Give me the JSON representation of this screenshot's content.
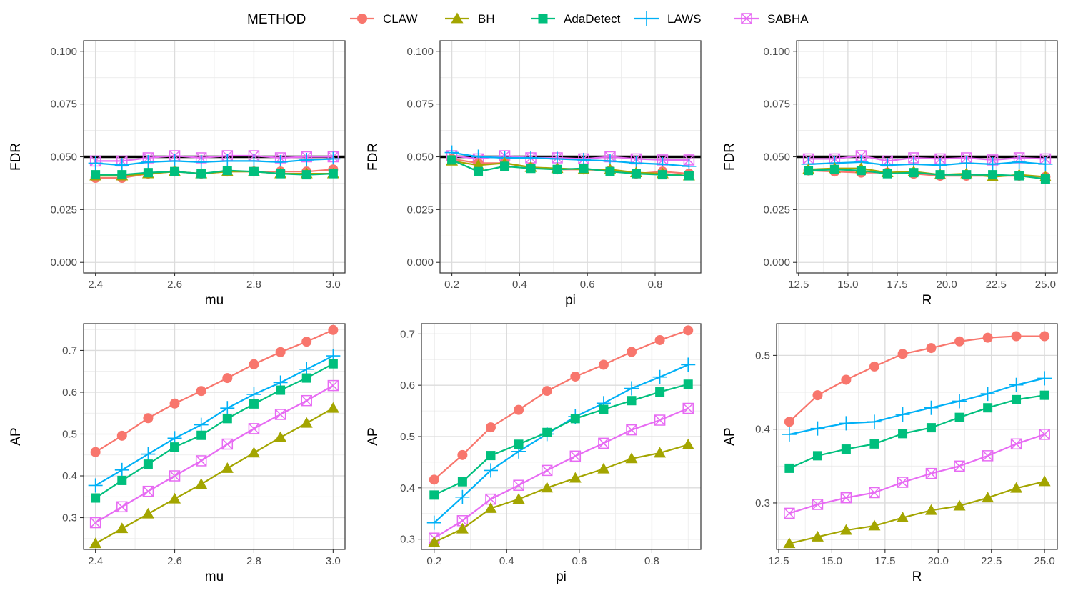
{
  "legend": {
    "title": "METHOD",
    "items": [
      {
        "name": "CLAW",
        "color": "#F8766D",
        "shape": "circle"
      },
      {
        "name": "BH",
        "color": "#A3A500",
        "shape": "triangle"
      },
      {
        "name": "AdaDetect",
        "color": "#00BF7D",
        "shape": "square"
      },
      {
        "name": "LAWS",
        "color": "#00B0F6",
        "shape": "plus"
      },
      {
        "name": "SABHA",
        "color": "#E76BF3",
        "shape": "boxcross"
      }
    ]
  },
  "chart_data": [
    {
      "type": "line",
      "xlabel": "mu",
      "ylabel": "FDR",
      "xlim": [
        2.37,
        3.03
      ],
      "ylim": [
        -0.005,
        0.105
      ],
      "xticks": [
        2.4,
        2.6,
        2.8,
        3.0
      ],
      "xtick_labels": [
        "2.4",
        "2.6",
        "2.8",
        "3.0"
      ],
      "yticks": [
        0.0,
        0.025,
        0.05,
        0.075,
        0.1
      ],
      "ytick_labels": [
        "0.000",
        "0.025",
        "0.050",
        "0.075",
        "0.100"
      ],
      "hline": 0.05,
      "x": [
        2.4,
        2.467,
        2.533,
        2.6,
        2.667,
        2.733,
        2.8,
        2.867,
        2.933,
        3.0
      ],
      "series": [
        {
          "name": "CLAW",
          "values": [
            0.04,
            0.04,
            0.042,
            0.043,
            0.042,
            0.043,
            0.043,
            0.043,
            0.043,
            0.044
          ]
        },
        {
          "name": "BH",
          "values": [
            0.041,
            0.041,
            0.042,
            0.043,
            0.042,
            0.043,
            0.043,
            0.042,
            0.042,
            0.042
          ]
        },
        {
          "name": "AdaDetect",
          "values": [
            0.0415,
            0.0415,
            0.0425,
            0.043,
            0.042,
            0.0435,
            0.043,
            0.042,
            0.0415,
            0.042
          ]
        },
        {
          "name": "LAWS",
          "values": [
            0.047,
            0.046,
            0.0475,
            0.048,
            0.0475,
            0.048,
            0.048,
            0.0475,
            0.0485,
            0.049
          ]
        },
        {
          "name": "SABHA",
          "values": [
            0.048,
            0.048,
            0.0495,
            0.0505,
            0.0495,
            0.0505,
            0.0505,
            0.0495,
            0.05,
            0.05
          ]
        }
      ]
    },
    {
      "type": "line",
      "xlabel": "pi",
      "ylabel": "FDR",
      "xlim": [
        0.165,
        0.935
      ],
      "ylim": [
        -0.005,
        0.105
      ],
      "xticks": [
        0.2,
        0.4,
        0.6,
        0.8
      ],
      "xtick_labels": [
        "0.2",
        "0.4",
        "0.6",
        "0.8"
      ],
      "yticks": [
        0.0,
        0.025,
        0.05,
        0.075,
        0.1
      ],
      "ytick_labels": [
        "0.000",
        "0.025",
        "0.050",
        "0.075",
        "0.100"
      ],
      "hline": 0.05,
      "x": [
        0.2,
        0.278,
        0.356,
        0.433,
        0.511,
        0.589,
        0.667,
        0.744,
        0.822,
        0.9
      ],
      "series": [
        {
          "name": "CLAW",
          "values": [
            0.049,
            0.047,
            0.047,
            0.045,
            0.044,
            0.044,
            0.0435,
            0.042,
            0.043,
            0.042
          ]
        },
        {
          "name": "BH",
          "values": [
            0.048,
            0.046,
            0.047,
            0.045,
            0.0445,
            0.044,
            0.044,
            0.0425,
            0.042,
            0.041
          ]
        },
        {
          "name": "AdaDetect",
          "values": [
            0.0485,
            0.043,
            0.0455,
            0.0445,
            0.044,
            0.0445,
            0.043,
            0.042,
            0.0415,
            0.041
          ]
        },
        {
          "name": "LAWS",
          "values": [
            0.052,
            0.05,
            0.0495,
            0.0495,
            0.049,
            0.0485,
            0.048,
            0.047,
            0.0465,
            0.0455
          ]
        },
        {
          "name": "SABHA",
          "values": [
            0.0505,
            0.049,
            0.0505,
            0.0495,
            0.0495,
            0.049,
            0.05,
            0.049,
            0.0485,
            0.0485
          ]
        }
      ]
    },
    {
      "type": "line",
      "xlabel": "R",
      "ylabel": "FDR",
      "xlim": [
        12.4,
        25.6
      ],
      "ylim": [
        -0.005,
        0.105
      ],
      "xticks": [
        12.5,
        15.0,
        17.5,
        20.0,
        22.5,
        25.0
      ],
      "xtick_labels": [
        "12.5",
        "15.0",
        "17.5",
        "20.0",
        "22.5",
        "25.0"
      ],
      "yticks": [
        0.0,
        0.025,
        0.05,
        0.075,
        0.1
      ],
      "ytick_labels": [
        "0.000",
        "0.025",
        "0.050",
        "0.075",
        "0.100"
      ],
      "hline": 0.05,
      "x": [
        13,
        14.33,
        15.67,
        17,
        18.33,
        19.67,
        21,
        22.33,
        23.67,
        25
      ],
      "series": [
        {
          "name": "CLAW",
          "values": [
            0.0435,
            0.043,
            0.0425,
            0.0425,
            0.042,
            0.041,
            0.041,
            0.041,
            0.041,
            0.0405
          ]
        },
        {
          "name": "BH",
          "values": [
            0.044,
            0.0445,
            0.0445,
            0.0425,
            0.043,
            0.0415,
            0.042,
            0.0405,
            0.0415,
            0.0405
          ]
        },
        {
          "name": "AdaDetect",
          "values": [
            0.0435,
            0.044,
            0.0435,
            0.042,
            0.0425,
            0.0415,
            0.0415,
            0.0415,
            0.041,
            0.0395
          ]
        },
        {
          "name": "LAWS",
          "values": [
            0.0465,
            0.047,
            0.0475,
            0.046,
            0.0465,
            0.046,
            0.047,
            0.0465,
            0.0475,
            0.0465
          ]
        },
        {
          "name": "SABHA",
          "values": [
            0.049,
            0.049,
            0.0505,
            0.048,
            0.0495,
            0.049,
            0.0495,
            0.0485,
            0.0495,
            0.049
          ]
        }
      ]
    },
    {
      "type": "line",
      "xlabel": "mu",
      "ylabel": "AP",
      "xlim": [
        2.37,
        3.03
      ],
      "ylim": [
        0.224,
        0.764
      ],
      "xticks": [
        2.4,
        2.6,
        2.8,
        3.0
      ],
      "xtick_labels": [
        "2.4",
        "2.6",
        "2.8",
        "3.0"
      ],
      "yticks": [
        0.3,
        0.4,
        0.5,
        0.6,
        0.7
      ],
      "ytick_labels": [
        "0.3",
        "0.4",
        "0.5",
        "0.6",
        "0.7"
      ],
      "x": [
        2.4,
        2.467,
        2.533,
        2.6,
        2.667,
        2.733,
        2.8,
        2.867,
        2.933,
        3.0
      ],
      "series": [
        {
          "name": "CLAW",
          "values": [
            0.457,
            0.496,
            0.538,
            0.573,
            0.603,
            0.634,
            0.667,
            0.696,
            0.721,
            0.749
          ]
        },
        {
          "name": "BH",
          "values": [
            0.238,
            0.274,
            0.309,
            0.345,
            0.38,
            0.418,
            0.455,
            0.492,
            0.526,
            0.562
          ]
        },
        {
          "name": "AdaDetect",
          "values": [
            0.347,
            0.389,
            0.428,
            0.469,
            0.497,
            0.537,
            0.572,
            0.605,
            0.634,
            0.668
          ]
        },
        {
          "name": "LAWS",
          "values": [
            0.377,
            0.414,
            0.452,
            0.49,
            0.522,
            0.562,
            0.595,
            0.623,
            0.655,
            0.687
          ]
        },
        {
          "name": "SABHA",
          "values": [
            0.288,
            0.326,
            0.363,
            0.4,
            0.436,
            0.476,
            0.513,
            0.547,
            0.58,
            0.616
          ]
        }
      ]
    },
    {
      "type": "line",
      "xlabel": "pi",
      "ylabel": "AP",
      "xlim": [
        0.165,
        0.935
      ],
      "ylim": [
        0.28,
        0.72
      ],
      "xticks": [
        0.2,
        0.4,
        0.6,
        0.8
      ],
      "xtick_labels": [
        "0.2",
        "0.4",
        "0.6",
        "0.8"
      ],
      "yticks": [
        0.3,
        0.4,
        0.5,
        0.6,
        0.7
      ],
      "ytick_labels": [
        "0.3",
        "0.4",
        "0.5",
        "0.6",
        "0.7"
      ],
      "x": [
        0.2,
        0.278,
        0.356,
        0.433,
        0.511,
        0.589,
        0.667,
        0.744,
        0.822,
        0.9
      ],
      "series": [
        {
          "name": "CLAW",
          "values": [
            0.416,
            0.464,
            0.518,
            0.552,
            0.589,
            0.617,
            0.64,
            0.665,
            0.688,
            0.707
          ]
        },
        {
          "name": "BH",
          "values": [
            0.294,
            0.32,
            0.36,
            0.378,
            0.4,
            0.419,
            0.437,
            0.457,
            0.468,
            0.484
          ]
        },
        {
          "name": "AdaDetect",
          "values": [
            0.386,
            0.412,
            0.463,
            0.485,
            0.508,
            0.535,
            0.553,
            0.57,
            0.587,
            0.602
          ]
        },
        {
          "name": "LAWS",
          "values": [
            0.332,
            0.382,
            0.434,
            0.471,
            0.505,
            0.539,
            0.565,
            0.594,
            0.616,
            0.64
          ]
        },
        {
          "name": "SABHA",
          "values": [
            0.302,
            0.336,
            0.378,
            0.405,
            0.434,
            0.462,
            0.487,
            0.513,
            0.532,
            0.555
          ]
        }
      ]
    },
    {
      "type": "line",
      "xlabel": "R",
      "ylabel": "AP",
      "xlim": [
        12.4,
        25.6
      ],
      "ylim": [
        0.237,
        0.543
      ],
      "xticks": [
        12.5,
        15.0,
        17.5,
        20.0,
        22.5,
        25.0
      ],
      "xtick_labels": [
        "12.5",
        "15.0",
        "17.5",
        "20.0",
        "22.5",
        "25.0"
      ],
      "yticks": [
        0.3,
        0.4,
        0.5
      ],
      "ytick_labels": [
        "0.3",
        "0.4",
        "0.5"
      ],
      "x": [
        13,
        14.33,
        15.67,
        17,
        18.33,
        19.67,
        21,
        22.33,
        23.67,
        25
      ],
      "series": [
        {
          "name": "CLAW",
          "values": [
            0.41,
            0.446,
            0.467,
            0.485,
            0.502,
            0.51,
            0.519,
            0.524,
            0.526,
            0.526
          ]
        },
        {
          "name": "BH",
          "values": [
            0.245,
            0.254,
            0.263,
            0.269,
            0.28,
            0.29,
            0.296,
            0.307,
            0.32,
            0.329
          ]
        },
        {
          "name": "AdaDetect",
          "values": [
            0.347,
            0.364,
            0.373,
            0.38,
            0.394,
            0.402,
            0.416,
            0.429,
            0.44,
            0.446
          ]
        },
        {
          "name": "LAWS",
          "values": [
            0.393,
            0.401,
            0.408,
            0.41,
            0.42,
            0.429,
            0.438,
            0.448,
            0.46,
            0.469
          ]
        },
        {
          "name": "SABHA",
          "values": [
            0.286,
            0.298,
            0.307,
            0.314,
            0.328,
            0.34,
            0.35,
            0.364,
            0.38,
            0.393
          ]
        }
      ]
    }
  ]
}
